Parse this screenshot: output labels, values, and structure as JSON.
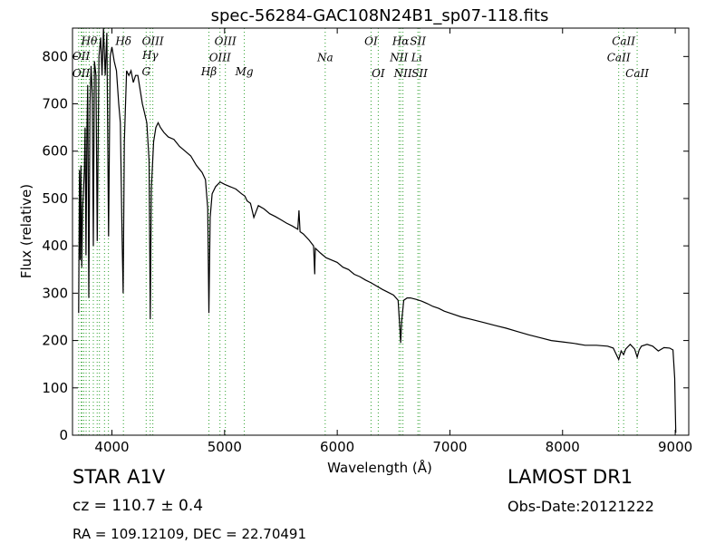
{
  "chart_data": {
    "type": "line",
    "title": "spec-56284-GAC108N24B1_sp07-118.fits",
    "xlabel": "Wavelength (Å)",
    "ylabel": "Flux (relative)",
    "xlim": [
      3650,
      9120
    ],
    "ylim": [
      0,
      860
    ],
    "xticks": [
      4000,
      5000,
      6000,
      7000,
      8000,
      9000
    ],
    "yticks": [
      0,
      100,
      200,
      300,
      400,
      500,
      600,
      700,
      800
    ],
    "grid": false,
    "line_color": "#000000",
    "marker_color": "#2ca02c",
    "series": [
      {
        "points": [
          [
            3705,
            258
          ],
          [
            3712,
            560
          ],
          [
            3718,
            370
          ],
          [
            3725,
            570
          ],
          [
            3732,
            355
          ],
          [
            3740,
            480
          ],
          [
            3748,
            520
          ],
          [
            3755,
            560
          ],
          [
            3762,
            650
          ],
          [
            3770,
            380
          ],
          [
            3778,
            640
          ],
          [
            3785,
            740
          ],
          [
            3795,
            290
          ],
          [
            3805,
            700
          ],
          [
            3815,
            780
          ],
          [
            3825,
            720
          ],
          [
            3835,
            400
          ],
          [
            3845,
            790
          ],
          [
            3858,
            760
          ],
          [
            3870,
            410
          ],
          [
            3885,
            800
          ],
          [
            3900,
            840
          ],
          [
            3912,
            760
          ],
          [
            3925,
            860
          ],
          [
            3940,
            760
          ],
          [
            3955,
            850
          ],
          [
            3970,
            420
          ],
          [
            3985,
            800
          ],
          [
            4000,
            820
          ],
          [
            4020,
            790
          ],
          [
            4040,
            770
          ],
          [
            4060,
            700
          ],
          [
            4075,
            660
          ],
          [
            4090,
            420
          ],
          [
            4100,
            300
          ],
          [
            4110,
            620
          ],
          [
            4130,
            770
          ],
          [
            4150,
            760
          ],
          [
            4170,
            770
          ],
          [
            4190,
            745
          ],
          [
            4210,
            760
          ],
          [
            4230,
            760
          ],
          [
            4250,
            730
          ],
          [
            4270,
            700
          ],
          [
            4290,
            680
          ],
          [
            4310,
            660
          ],
          [
            4330,
            580
          ],
          [
            4340,
            245
          ],
          [
            4350,
            520
          ],
          [
            4370,
            620
          ],
          [
            4390,
            650
          ],
          [
            4410,
            660
          ],
          [
            4430,
            650
          ],
          [
            4460,
            640
          ],
          [
            4500,
            630
          ],
          [
            4550,
            625
          ],
          [
            4600,
            610
          ],
          [
            4650,
            600
          ],
          [
            4700,
            590
          ],
          [
            4750,
            570
          ],
          [
            4800,
            555
          ],
          [
            4830,
            540
          ],
          [
            4850,
            480
          ],
          [
            4861,
            258
          ],
          [
            4872,
            460
          ],
          [
            4890,
            510
          ],
          [
            4920,
            525
          ],
          [
            4960,
            535
          ],
          [
            5000,
            530
          ],
          [
            5050,
            525
          ],
          [
            5100,
            520
          ],
          [
            5150,
            510
          ],
          [
            5180,
            505
          ],
          [
            5200,
            495
          ],
          [
            5230,
            490
          ],
          [
            5260,
            460
          ],
          [
            5300,
            485
          ],
          [
            5350,
            478
          ],
          [
            5400,
            468
          ],
          [
            5450,
            462
          ],
          [
            5500,
            455
          ],
          [
            5550,
            448
          ],
          [
            5600,
            442
          ],
          [
            5650,
            435
          ],
          [
            5660,
            475
          ],
          [
            5670,
            430
          ],
          [
            5700,
            425
          ],
          [
            5750,
            412
          ],
          [
            5790,
            400
          ],
          [
            5800,
            340
          ],
          [
            5802,
            365
          ],
          [
            5806,
            395
          ],
          [
            5850,
            385
          ],
          [
            5900,
            375
          ],
          [
            5950,
            370
          ],
          [
            6000,
            365
          ],
          [
            6050,
            355
          ],
          [
            6100,
            350
          ],
          [
            6150,
            340
          ],
          [
            6200,
            335
          ],
          [
            6250,
            328
          ],
          [
            6300,
            322
          ],
          [
            6350,
            315
          ],
          [
            6400,
            308
          ],
          [
            6450,
            302
          ],
          [
            6500,
            296
          ],
          [
            6540,
            285
          ],
          [
            6555,
            230
          ],
          [
            6563,
            195
          ],
          [
            6572,
            240
          ],
          [
            6590,
            285
          ],
          [
            6620,
            290
          ],
          [
            6650,
            290
          ],
          [
            6700,
            287
          ],
          [
            6750,
            283
          ],
          [
            6800,
            278
          ],
          [
            6850,
            272
          ],
          [
            6900,
            268
          ],
          [
            6950,
            262
          ],
          [
            7000,
            258
          ],
          [
            7100,
            250
          ],
          [
            7200,
            244
          ],
          [
            7300,
            238
          ],
          [
            7400,
            232
          ],
          [
            7500,
            226
          ],
          [
            7600,
            219
          ],
          [
            7700,
            212
          ],
          [
            7800,
            206
          ],
          [
            7900,
            200
          ],
          [
            8000,
            197
          ],
          [
            8100,
            194
          ],
          [
            8200,
            190
          ],
          [
            8300,
            190
          ],
          [
            8400,
            188
          ],
          [
            8450,
            184
          ],
          [
            8498,
            160
          ],
          [
            8520,
            178
          ],
          [
            8542,
            170
          ],
          [
            8560,
            182
          ],
          [
            8600,
            192
          ],
          [
            8640,
            182
          ],
          [
            8662,
            165
          ],
          [
            8680,
            180
          ],
          [
            8700,
            188
          ],
          [
            8750,
            192
          ],
          [
            8800,
            188
          ],
          [
            8850,
            178
          ],
          [
            8900,
            185
          ],
          [
            8950,
            184
          ],
          [
            8980,
            180
          ],
          [
            8995,
            120
          ],
          [
            9000,
            60
          ],
          [
            9005,
            5
          ]
        ]
      }
    ],
    "annotations": [
      {
        "text": "Hθ",
        "x": 3798,
        "y": 825
      },
      {
        "text": "OII",
        "x": 3727,
        "y": 793
      },
      {
        "text": "OII",
        "x": 3727,
        "y": 757
      },
      {
        "text": "Hδ",
        "x": 4102,
        "y": 825
      },
      {
        "text": "OIII",
        "x": 4363,
        "y": 825
      },
      {
        "text": "Hγ",
        "x": 4340,
        "y": 795
      },
      {
        "text": "G",
        "x": 4304,
        "y": 760
      },
      {
        "text": "OIII",
        "x": 5007,
        "y": 825
      },
      {
        "text": "OIII",
        "x": 4959,
        "y": 790
      },
      {
        "text": "Hβ",
        "x": 4861,
        "y": 760
      },
      {
        "text": "Mg",
        "x": 5175,
        "y": 760
      },
      {
        "text": "Na",
        "x": 5893,
        "y": 790
      },
      {
        "text": "OI",
        "x": 6300,
        "y": 825
      },
      {
        "text": "OI",
        "x": 6364,
        "y": 757
      },
      {
        "text": "Hα",
        "x": 6563,
        "y": 825
      },
      {
        "text": "SII",
        "x": 6716,
        "y": 825
      },
      {
        "text": "NII",
        "x": 6548,
        "y": 790
      },
      {
        "text": "Lι",
        "x": 6708,
        "y": 790
      },
      {
        "text": "NII",
        "x": 6583,
        "y": 757
      },
      {
        "text": "SII",
        "x": 6731,
        "y": 757
      },
      {
        "text": "CaII",
        "x": 8542,
        "y": 825
      },
      {
        "text": "CaII",
        "x": 8498,
        "y": 790
      },
      {
        "text": "CaII",
        "x": 8662,
        "y": 757
      }
    ],
    "markers": [
      3705,
      3727,
      3734,
      3750,
      3771,
      3798,
      3835,
      3869,
      3889,
      3934,
      3969,
      4102,
      4304,
      4340,
      4363,
      4861,
      4959,
      5007,
      5175,
      5893,
      6300,
      6364,
      6548,
      6563,
      6583,
      6716,
      6731,
      8498,
      8542,
      8662
    ]
  },
  "info": {
    "object_class": "STAR   A1V",
    "survey": "LAMOST DR1",
    "redshift": "cz = 110.7  ± 0.4",
    "obs_date": "Obs-Date:20121222",
    "coordinates": "RA = 109.12109, DEC = 22.70491"
  }
}
